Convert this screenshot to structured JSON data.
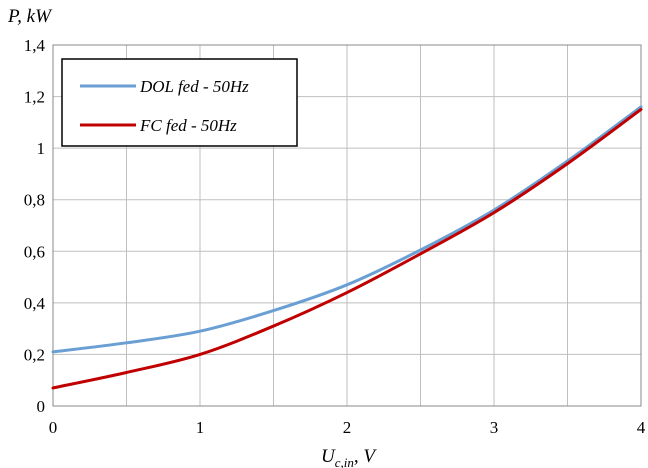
{
  "chart_data": {
    "type": "line",
    "title": "",
    "ylabel": "P, kW",
    "xlabel_main": "U",
    "xlabel_sub": "c,in",
    "xlabel_unit": ", V",
    "xlim": [
      0,
      4
    ],
    "ylim": [
      0,
      1.4
    ],
    "x_ticks": [
      0,
      1,
      2,
      3,
      4
    ],
    "x_tick_labels": [
      "0",
      "1",
      "2",
      "3",
      "4"
    ],
    "y_ticks": [
      0,
      0.2,
      0.4,
      0.6,
      0.8,
      1.0,
      1.2,
      1.4
    ],
    "y_tick_labels": [
      "0",
      "0,2",
      "0,4",
      "0,6",
      "0,8",
      "1",
      "1,2",
      "1,4"
    ],
    "grid": true,
    "legend_position": "top-left",
    "series": [
      {
        "name": "DOL fed - 50Hz",
        "color": "#6a9fd4",
        "x": [
          0,
          0.5,
          1.0,
          1.5,
          2.0,
          2.5,
          3.0,
          3.5,
          4.0
        ],
        "y": [
          0.21,
          0.245,
          0.29,
          0.37,
          0.47,
          0.605,
          0.76,
          0.95,
          1.16
        ]
      },
      {
        "name": "FC fed - 50Hz",
        "color": "#c00000",
        "x": [
          0,
          0.5,
          1.0,
          1.5,
          2.0,
          2.5,
          3.0,
          3.5,
          4.0
        ],
        "y": [
          0.07,
          0.13,
          0.2,
          0.31,
          0.44,
          0.59,
          0.75,
          0.94,
          1.15
        ]
      }
    ]
  }
}
